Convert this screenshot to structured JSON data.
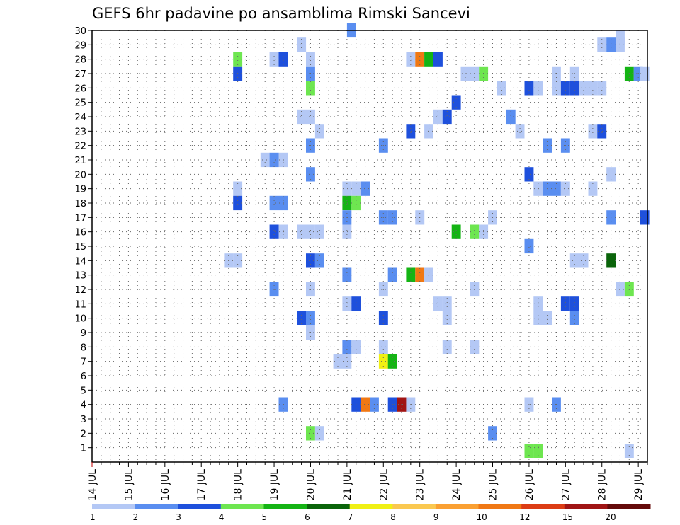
{
  "chart_data": {
    "type": "heatmap",
    "title": "GEFS 6hr padavine po ansamblima Rimski Sancevi",
    "ylim": [
      0,
      30
    ],
    "yticks": [
      "1",
      "2",
      "3",
      "4",
      "5",
      "6",
      "7",
      "8",
      "9",
      "10",
      "11",
      "12",
      "13",
      "14",
      "15",
      "16",
      "17",
      "18",
      "19",
      "20",
      "21",
      "22",
      "23",
      "24",
      "25",
      "26",
      "27",
      "28",
      "29",
      "30"
    ],
    "x_range_steps": [
      0,
      61
    ],
    "steps_per_day": 4,
    "xtick_labels": [
      "14 JUL",
      "15 JUL",
      "16 JUL",
      "17 JUL",
      "18 JUL",
      "19 JUL",
      "20 JUL",
      "21 JUL",
      "22 JUL",
      "23 JUL",
      "24 JUL",
      "25 JUL",
      "26 JUL",
      "27 JUL",
      "28 JUL",
      "29 JUL"
    ],
    "grid": true,
    "colorbar": {
      "levels": [
        "1",
        "2",
        "3",
        "4",
        "5",
        "6",
        "7",
        "8",
        "9",
        "10",
        "12",
        "15",
        "20"
      ],
      "colors": [
        "#b4c8f5",
        "#5a8ef0",
        "#1e50dc",
        "#6ee650",
        "#14b414",
        "#0a640a",
        "#f0f014",
        "#fac850",
        "#faa032",
        "#f07814",
        "#dc3c14",
        "#a01414",
        "#640a0a"
      ]
    },
    "cells": [
      {
        "x": 28.5,
        "y": 30,
        "c": 1
      },
      {
        "x": 58,
        "y": 29.5,
        "c": 0
      },
      {
        "x": 23,
        "y": 29,
        "c": 0
      },
      {
        "x": 56,
        "y": 29,
        "c": 0
      },
      {
        "x": 57,
        "y": 29,
        "c": 1
      },
      {
        "x": 58,
        "y": 29,
        "c": 0
      },
      {
        "x": 16,
        "y": 28,
        "c": 3
      },
      {
        "x": 20,
        "y": 28,
        "c": 0
      },
      {
        "x": 21,
        "y": 28,
        "c": 2
      },
      {
        "x": 24,
        "y": 28,
        "c": 0
      },
      {
        "x": 35,
        "y": 28,
        "c": 0
      },
      {
        "x": 36,
        "y": 28,
        "c": 9
      },
      {
        "x": 37,
        "y": 28,
        "c": 4
      },
      {
        "x": 38,
        "y": 28,
        "c": 2
      },
      {
        "x": 16,
        "y": 27,
        "c": 2
      },
      {
        "x": 24,
        "y": 27,
        "c": 1
      },
      {
        "x": 41,
        "y": 27,
        "c": 0
      },
      {
        "x": 42,
        "y": 27,
        "c": 0
      },
      {
        "x": 43,
        "y": 27,
        "c": 3
      },
      {
        "x": 51,
        "y": 27,
        "c": 0
      },
      {
        "x": 53,
        "y": 27,
        "c": 0
      },
      {
        "x": 59,
        "y": 27,
        "c": 4
      },
      {
        "x": 60,
        "y": 27,
        "c": 1
      },
      {
        "x": 60.7,
        "y": 27,
        "c": 0
      },
      {
        "x": 24,
        "y": 26,
        "c": 3
      },
      {
        "x": 45,
        "y": 26,
        "c": 0
      },
      {
        "x": 48,
        "y": 26,
        "c": 2
      },
      {
        "x": 49,
        "y": 26,
        "c": 0
      },
      {
        "x": 51,
        "y": 26,
        "c": 0
      },
      {
        "x": 52,
        "y": 26,
        "c": 2
      },
      {
        "x": 53,
        "y": 26,
        "c": 2
      },
      {
        "x": 54,
        "y": 26,
        "c": 0
      },
      {
        "x": 55,
        "y": 26,
        "c": 0
      },
      {
        "x": 56,
        "y": 26,
        "c": 0
      },
      {
        "x": 40,
        "y": 25,
        "c": 2
      },
      {
        "x": 23,
        "y": 24,
        "c": 0
      },
      {
        "x": 24,
        "y": 24,
        "c": 0
      },
      {
        "x": 38,
        "y": 24,
        "c": 0
      },
      {
        "x": 39,
        "y": 24,
        "c": 2
      },
      {
        "x": 46,
        "y": 24,
        "c": 1
      },
      {
        "x": 25,
        "y": 23,
        "c": 0
      },
      {
        "x": 35,
        "y": 23,
        "c": 2
      },
      {
        "x": 37,
        "y": 23,
        "c": 0
      },
      {
        "x": 47,
        "y": 23,
        "c": 0
      },
      {
        "x": 55,
        "y": 23,
        "c": 0
      },
      {
        "x": 56,
        "y": 23,
        "c": 2
      },
      {
        "x": 24,
        "y": 22,
        "c": 1
      },
      {
        "x": 32,
        "y": 22,
        "c": 1
      },
      {
        "x": 50,
        "y": 22,
        "c": 1
      },
      {
        "x": 52,
        "y": 22,
        "c": 1
      },
      {
        "x": 19,
        "y": 21,
        "c": 0
      },
      {
        "x": 20,
        "y": 21,
        "c": 1
      },
      {
        "x": 21,
        "y": 21,
        "c": 0
      },
      {
        "x": 24,
        "y": 20,
        "c": 1
      },
      {
        "x": 48,
        "y": 20,
        "c": 2
      },
      {
        "x": 57,
        "y": 20,
        "c": 0
      },
      {
        "x": 16,
        "y": 19,
        "c": 0
      },
      {
        "x": 28,
        "y": 19,
        "c": 0
      },
      {
        "x": 29,
        "y": 19,
        "c": 0
      },
      {
        "x": 30,
        "y": 19,
        "c": 1
      },
      {
        "x": 49,
        "y": 19,
        "c": 0
      },
      {
        "x": 50,
        "y": 19,
        "c": 1
      },
      {
        "x": 51,
        "y": 19,
        "c": 1
      },
      {
        "x": 52,
        "y": 19,
        "c": 0
      },
      {
        "x": 55,
        "y": 19,
        "c": 0
      },
      {
        "x": 16,
        "y": 18,
        "c": 2
      },
      {
        "x": 20,
        "y": 18,
        "c": 1
      },
      {
        "x": 21,
        "y": 18,
        "c": 1
      },
      {
        "x": 28,
        "y": 18,
        "c": 4
      },
      {
        "x": 29,
        "y": 18,
        "c": 3
      },
      {
        "x": 28,
        "y": 17,
        "c": 1
      },
      {
        "x": 32,
        "y": 17,
        "c": 1
      },
      {
        "x": 33,
        "y": 17,
        "c": 1
      },
      {
        "x": 36,
        "y": 17,
        "c": 0
      },
      {
        "x": 44,
        "y": 17,
        "c": 0
      },
      {
        "x": 57,
        "y": 17,
        "c": 1
      },
      {
        "x": 60.7,
        "y": 17,
        "c": 2
      },
      {
        "x": 20,
        "y": 16,
        "c": 2
      },
      {
        "x": 21,
        "y": 16,
        "c": 0
      },
      {
        "x": 23,
        "y": 16,
        "c": 0
      },
      {
        "x": 24,
        "y": 16,
        "c": 0
      },
      {
        "x": 25,
        "y": 16,
        "c": 0
      },
      {
        "x": 28,
        "y": 16,
        "c": 0
      },
      {
        "x": 40,
        "y": 16,
        "c": 4
      },
      {
        "x": 42,
        "y": 16,
        "c": 3
      },
      {
        "x": 43,
        "y": 16,
        "c": 0
      },
      {
        "x": 48,
        "y": 15,
        "c": 1
      },
      {
        "x": 15,
        "y": 14,
        "c": 0
      },
      {
        "x": 16,
        "y": 14,
        "c": 0
      },
      {
        "x": 24,
        "y": 14,
        "c": 2
      },
      {
        "x": 25,
        "y": 14,
        "c": 1
      },
      {
        "x": 53,
        "y": 14,
        "c": 0
      },
      {
        "x": 54,
        "y": 14,
        "c": 0
      },
      {
        "x": 57,
        "y": 14,
        "c": 5
      },
      {
        "x": 28,
        "y": 13,
        "c": 1
      },
      {
        "x": 33,
        "y": 13,
        "c": 1
      },
      {
        "x": 35,
        "y": 13,
        "c": 4
      },
      {
        "x": 36,
        "y": 13,
        "c": 9
      },
      {
        "x": 37,
        "y": 13,
        "c": 0
      },
      {
        "x": 20,
        "y": 12,
        "c": 1
      },
      {
        "x": 24,
        "y": 12,
        "c": 0
      },
      {
        "x": 32,
        "y": 12,
        "c": 0
      },
      {
        "x": 42,
        "y": 12,
        "c": 0
      },
      {
        "x": 58,
        "y": 12,
        "c": 0
      },
      {
        "x": 59,
        "y": 12,
        "c": 3
      },
      {
        "x": 28,
        "y": 11,
        "c": 0
      },
      {
        "x": 29,
        "y": 11,
        "c": 2
      },
      {
        "x": 38,
        "y": 11,
        "c": 0
      },
      {
        "x": 39,
        "y": 11,
        "c": 0
      },
      {
        "x": 49,
        "y": 11,
        "c": 0
      },
      {
        "x": 52,
        "y": 11,
        "c": 2
      },
      {
        "x": 53,
        "y": 11,
        "c": 2
      },
      {
        "x": 23,
        "y": 10,
        "c": 2
      },
      {
        "x": 24,
        "y": 10,
        "c": 1
      },
      {
        "x": 32,
        "y": 10,
        "c": 2
      },
      {
        "x": 39,
        "y": 10,
        "c": 0
      },
      {
        "x": 49,
        "y": 10,
        "c": 0
      },
      {
        "x": 50,
        "y": 10,
        "c": 0
      },
      {
        "x": 53,
        "y": 10,
        "c": 1
      },
      {
        "x": 24,
        "y": 9,
        "c": 0
      },
      {
        "x": 28,
        "y": 8,
        "c": 1
      },
      {
        "x": 29,
        "y": 8,
        "c": 0
      },
      {
        "x": 32,
        "y": 8,
        "c": 0
      },
      {
        "x": 39,
        "y": 8,
        "c": 0
      },
      {
        "x": 42,
        "y": 8,
        "c": 0
      },
      {
        "x": 27,
        "y": 7,
        "c": 0
      },
      {
        "x": 28,
        "y": 7,
        "c": 0
      },
      {
        "x": 32,
        "y": 7,
        "c": 6
      },
      {
        "x": 33,
        "y": 7,
        "c": 4
      },
      {
        "x": 21,
        "y": 4,
        "c": 1
      },
      {
        "x": 29,
        "y": 4,
        "c": 2
      },
      {
        "x": 30,
        "y": 4,
        "c": 9
      },
      {
        "x": 31,
        "y": 4,
        "c": 1
      },
      {
        "x": 33,
        "y": 4,
        "c": 2
      },
      {
        "x": 34,
        "y": 4,
        "c": 11
      },
      {
        "x": 35,
        "y": 4,
        "c": 0
      },
      {
        "x": 48,
        "y": 4,
        "c": 0
      },
      {
        "x": 51,
        "y": 4,
        "c": 1
      },
      {
        "x": 24,
        "y": 2,
        "c": 3
      },
      {
        "x": 25,
        "y": 2,
        "c": 0
      },
      {
        "x": 44,
        "y": 2,
        "c": 1
      },
      {
        "x": 48,
        "y": 0.75,
        "c": 3
      },
      {
        "x": 49,
        "y": 0.75,
        "c": 3
      },
      {
        "x": 59,
        "y": 0.75,
        "c": 0
      }
    ]
  }
}
